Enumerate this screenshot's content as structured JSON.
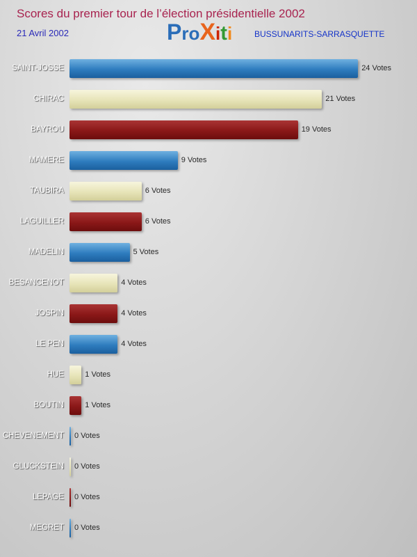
{
  "header": {
    "title": "Scores du premier tour de l’élection présidentielle 2002",
    "date": "21 Avril 2002",
    "location": "BUSSUNARITS-SARRASQUETTE",
    "logo": {
      "name": "Proxiti",
      "letters": [
        {
          "ch": "P",
          "color": "#2a6db8"
        },
        {
          "ch": "r",
          "color": "#2a6db8"
        },
        {
          "ch": "o",
          "color": "#2a6db8"
        },
        {
          "ch": "X",
          "color": "#e8641c"
        },
        {
          "ch": "i",
          "color": "#cc2200"
        },
        {
          "ch": "t",
          "color": "#339933"
        },
        {
          "ch": "i",
          "color": "#f08a1d"
        }
      ]
    }
  },
  "chart_data": {
    "type": "bar",
    "orientation": "horizontal",
    "title": "Scores du premier tour de l’élection présidentielle 2002",
    "categories": [
      "SAINT-JOSSE",
      "CHIRAC",
      "BAYROU",
      "MAMERE",
      "TAUBIRA",
      "LAGUILLER",
      "MADELIN",
      "BESANCENOT",
      "JOSPIN",
      "LE PEN",
      "HUE",
      "BOUTIN",
      "CHEVENEMENT",
      "GLUCKSTEIN",
      "LEPAGE",
      "MEGRET"
    ],
    "values": [
      24,
      21,
      19,
      9,
      6,
      6,
      5,
      4,
      4,
      4,
      1,
      1,
      0,
      0,
      0,
      0
    ],
    "value_suffix": " Votes",
    "xlim": [
      0,
      24
    ],
    "grid": false,
    "legend": "none",
    "bar_color_cycle": [
      "blue",
      "cream",
      "red"
    ],
    "colors": {
      "blue": "#2e7cbe",
      "cream": "#e7e4b8",
      "red": "#8a1818"
    }
  }
}
